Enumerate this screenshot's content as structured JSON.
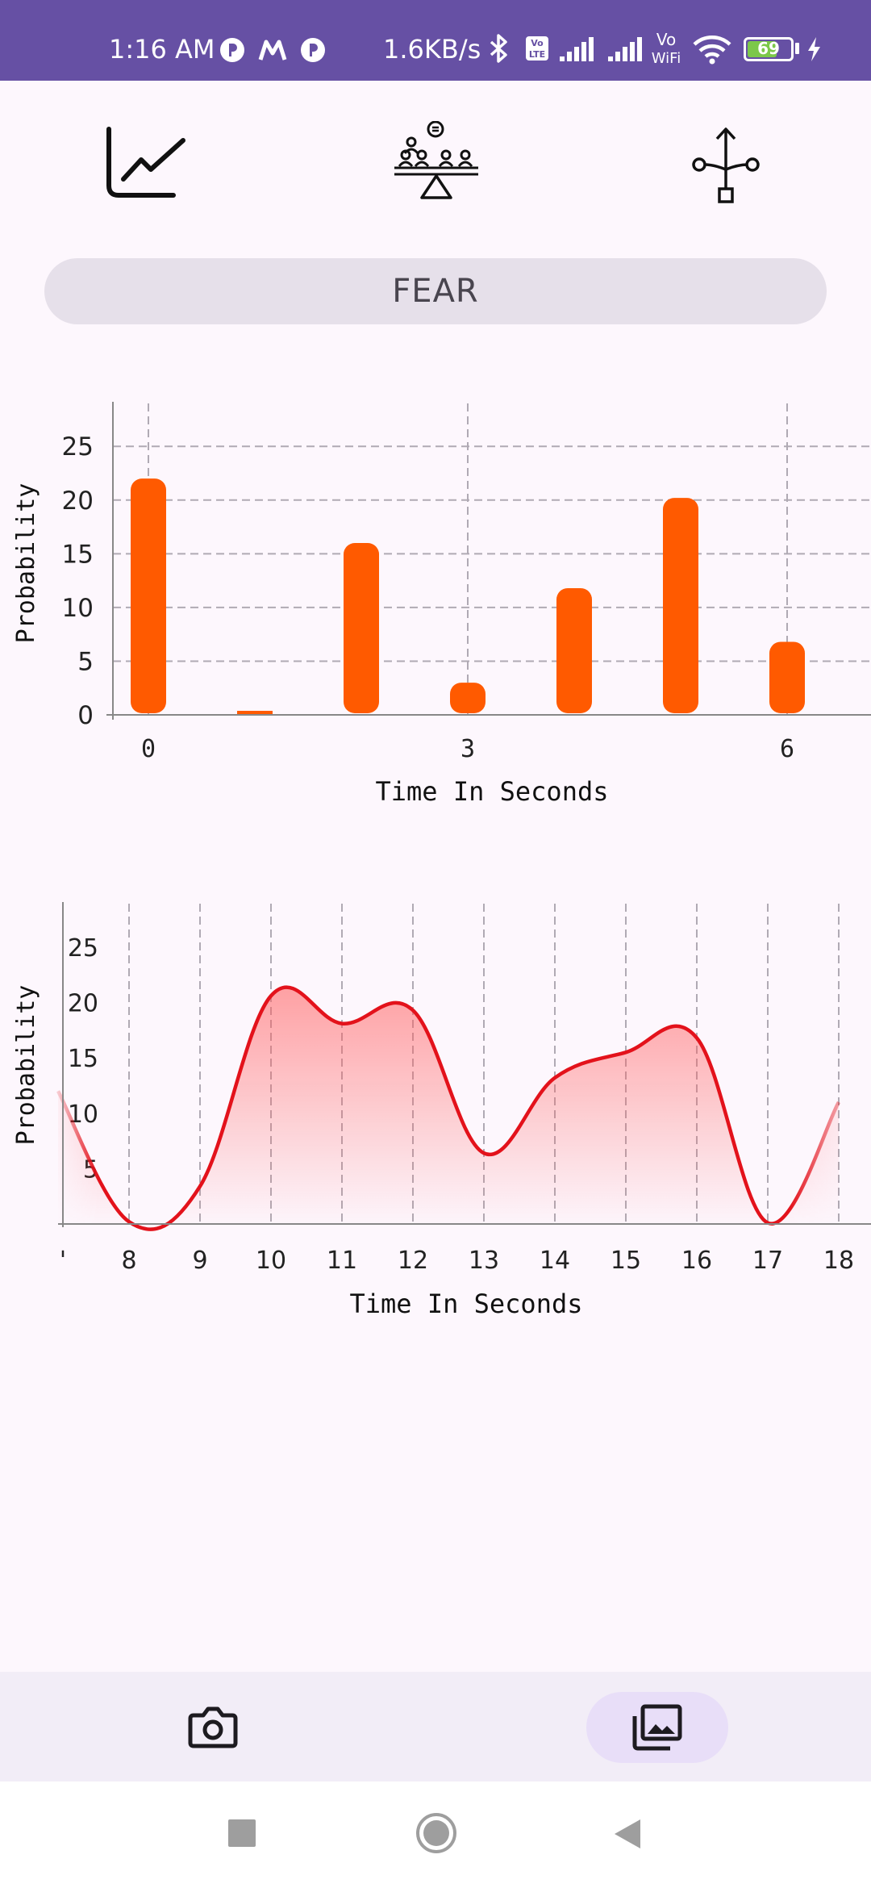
{
  "status_bar": {
    "time": "1:16 AM",
    "net_speed": "1.6KB/s",
    "battery": 69,
    "battery_label": "69",
    "volte_label": "Vo LTE",
    "vowifi_label": "Vo WiFi"
  },
  "top_tabs": [
    {
      "icon": "line-chart-icon"
    },
    {
      "icon": "meeting-balance-icon"
    },
    {
      "icon": "branch-flow-icon"
    }
  ],
  "emotion": {
    "label": "FEAR"
  },
  "bar_chart": {
    "chart_data": {
      "type": "bar",
      "x": [
        0,
        1,
        2,
        3,
        4,
        5,
        6
      ],
      "values": [
        22,
        0.3,
        16,
        3,
        11.8,
        20.2,
        6.8
      ],
      "xticks": [
        "0",
        "3",
        "6"
      ],
      "yticks": [
        "0",
        "5",
        "10",
        "15",
        "20",
        "25"
      ],
      "xlabel": "Time In Seconds",
      "ylabel": "Probability",
      "ylim": [
        0,
        29
      ],
      "grid": true,
      "color": "#ff5a00"
    }
  },
  "line_chart": {
    "chart_data": {
      "type": "area",
      "x": [
        7,
        8,
        9,
        10,
        11,
        12,
        13,
        14,
        15,
        16,
        17,
        18
      ],
      "values": [
        12,
        0.2,
        3.4,
        20.6,
        18.1,
        19.3,
        6.4,
        13.2,
        15.5,
        16.8,
        0.1,
        11
      ],
      "xticks": [
        "8",
        "9",
        "10",
        "11",
        "12",
        "13",
        "14",
        "15",
        "16",
        "17",
        "18"
      ],
      "yticks": [
        "5",
        "10",
        "15",
        "20",
        "25"
      ],
      "xlabel": "Time In Seconds",
      "ylabel": "Probability",
      "ylim": [
        0,
        29
      ],
      "grid": true,
      "color": "#e3121b"
    }
  },
  "bottom_nav": [
    {
      "icon": "camera-icon",
      "selected": false
    },
    {
      "icon": "gallery-icon",
      "selected": true
    }
  ],
  "system_nav": [
    {
      "icon": "recents-square-icon"
    },
    {
      "icon": "home-circle-icon"
    },
    {
      "icon": "back-triangle-icon"
    }
  ]
}
